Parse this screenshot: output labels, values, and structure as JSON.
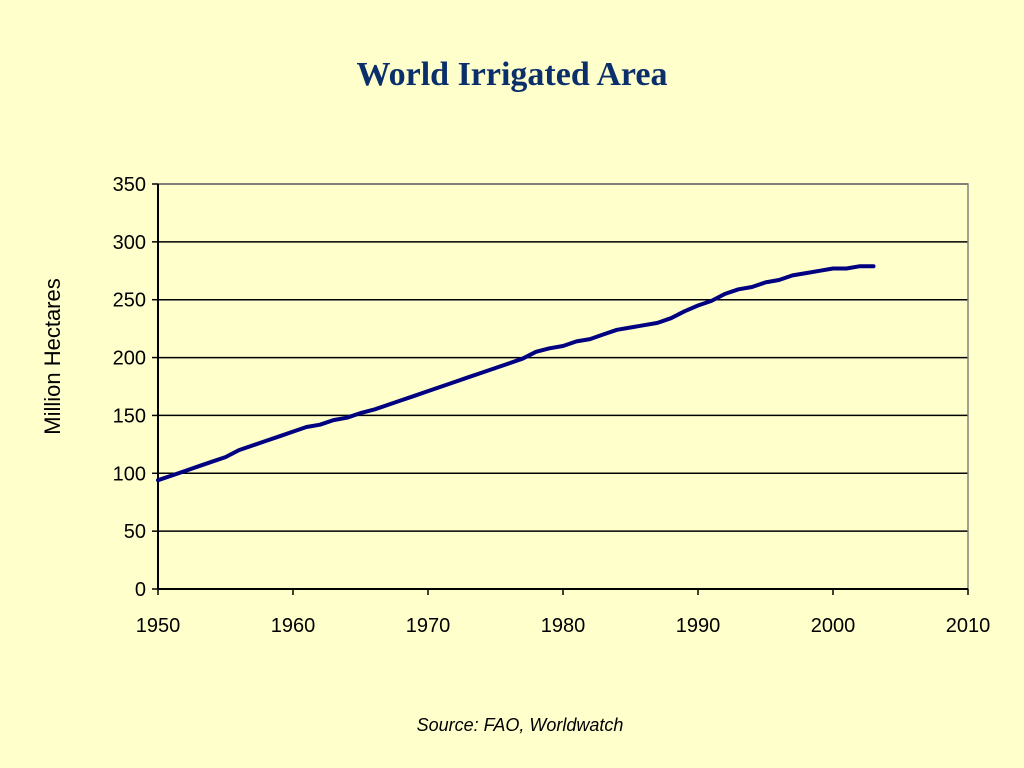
{
  "title": "World Irrigated Area",
  "source": "Source: FAO, Worldwatch",
  "colors": {
    "background": "#ffffcc",
    "line": "#000080",
    "title": "#0a2f6b",
    "frame": "#808080"
  },
  "chart_data": {
    "type": "line",
    "title": "World Irrigated Area",
    "xlabel": "",
    "ylabel": "Million Hectares",
    "xlim": [
      1950,
      2010
    ],
    "ylim": [
      0,
      350
    ],
    "xticks": [
      1950,
      1960,
      1970,
      1980,
      1990,
      2000,
      2010
    ],
    "yticks": [
      0,
      50,
      100,
      150,
      200,
      250,
      300,
      350
    ],
    "grid": "horizontal",
    "legend": "none",
    "series": [
      {
        "x": [
          1950,
          1951,
          1952,
          1953,
          1954,
          1955,
          1956,
          1957,
          1958,
          1959,
          1960,
          1961,
          1962,
          1963,
          1964,
          1965,
          1966,
          1967,
          1968,
          1969,
          1970,
          1971,
          1972,
          1973,
          1974,
          1975,
          1976,
          1977,
          1978,
          1979,
          1980,
          1981,
          1982,
          1983,
          1984,
          1985,
          1986,
          1987,
          1988,
          1989,
          1990,
          1991,
          1992,
          1993,
          1994,
          1995,
          1996,
          1997,
          1998,
          1999,
          2000,
          2001,
          2002,
          2003
        ],
        "y": [
          94,
          98,
          102,
          106,
          110,
          114,
          120,
          124,
          128,
          132,
          136,
          140,
          142,
          146,
          148,
          152,
          155,
          159,
          163,
          167,
          171,
          175,
          179,
          183,
          187,
          191,
          195,
          199,
          205,
          208,
          210,
          214,
          216,
          220,
          224,
          226,
          228,
          230,
          234,
          240,
          245,
          249,
          255,
          259,
          261,
          265,
          267,
          271,
          273,
          275,
          277,
          277,
          279,
          279
        ]
      }
    ]
  }
}
